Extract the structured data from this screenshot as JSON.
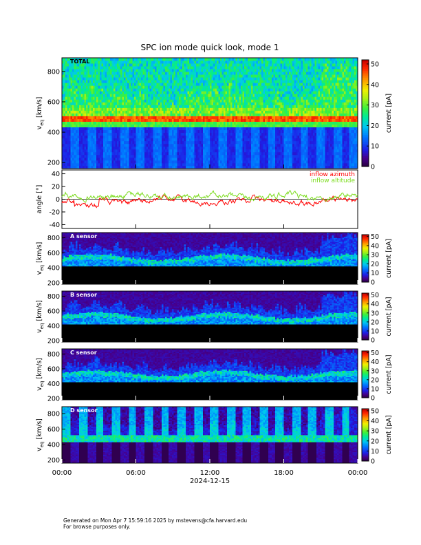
{
  "title": "SPC ion mode quick look, mode 1",
  "x_axis": {
    "tick_labels": [
      "00:00",
      "06:00",
      "12:00",
      "18:00",
      "00:00"
    ],
    "tick_hours": [
      0,
      6,
      12,
      18,
      24
    ],
    "date_label": "2024-12-15"
  },
  "colorbar_cmap": "rainbow",
  "chart_data": [
    {
      "type": "heatmap",
      "panel_label": "TOTAL",
      "ylabel_main": "v",
      "ylabel_sub": "eq",
      "ylabel_unit": "[km/s]",
      "yticks": [
        200,
        400,
        600,
        800
      ],
      "ylim": [
        160,
        890
      ],
      "colorbar_label": "current [pA]",
      "colorbar_ticks": [
        0,
        10,
        20,
        30,
        40,
        50
      ],
      "colorbar_range": [
        0,
        52
      ],
      "style": "total"
    },
    {
      "type": "line",
      "ylabel": "angle [°]",
      "yticks": [
        -40,
        -20,
        0,
        20,
        40
      ],
      "ylim": [
        -46,
        46
      ],
      "zero_line": true,
      "series": [
        {
          "name": "inflow azimuth",
          "color": "#ff0000"
        },
        {
          "name": "inflow altitude",
          "color": "#7cdc1e"
        }
      ]
    },
    {
      "type": "heatmap",
      "panel_label": "A sensor",
      "ylabel_main": "v",
      "ylabel_sub": "eq",
      "ylabel_unit": "[km/s]",
      "yticks": [
        200,
        400,
        600,
        800
      ],
      "ylim": [
        180,
        870
      ],
      "colorbar_label": "current [pA]",
      "colorbar_ticks": [
        0,
        10,
        20,
        30,
        40,
        50
      ],
      "colorbar_range": [
        0,
        52
      ],
      "style": "sensor"
    },
    {
      "type": "heatmap",
      "panel_label": "B sensor",
      "ylabel_main": "v",
      "ylabel_sub": "eq",
      "ylabel_unit": "[km/s]",
      "yticks": [
        200,
        400,
        600,
        800
      ],
      "ylim": [
        180,
        870
      ],
      "colorbar_label": "current [pA]",
      "colorbar_ticks": [
        0,
        10,
        20,
        30,
        40,
        50
      ],
      "colorbar_range": [
        0,
        52
      ],
      "style": "sensor"
    },
    {
      "type": "heatmap",
      "panel_label": "C sensor",
      "ylabel_main": "v",
      "ylabel_sub": "eq",
      "ylabel_unit": "[km/s]",
      "yticks": [
        200,
        400,
        600,
        800
      ],
      "ylim": [
        180,
        870
      ],
      "colorbar_label": "current [pA]",
      "colorbar_ticks": [
        0,
        10,
        20,
        30,
        40,
        50
      ],
      "colorbar_range": [
        0,
        52
      ],
      "style": "sensor"
    },
    {
      "type": "heatmap",
      "panel_label": "D sensor",
      "ylabel_main": "v",
      "ylabel_sub": "eq",
      "ylabel_unit": "[km/s]",
      "yticks": [
        200,
        400,
        600,
        800
      ],
      "ylim": [
        160,
        890
      ],
      "colorbar_label": "current [pA]",
      "colorbar_ticks": [
        0,
        10,
        20,
        30,
        40,
        50
      ],
      "colorbar_range": [
        0,
        52
      ],
      "style": "dsensor"
    }
  ],
  "footer": {
    "line1": "Generated on Mon Apr  7 15:59:16 2025 by mstevens@cfa.harvard.edu",
    "line2": "For browse purposes only."
  }
}
